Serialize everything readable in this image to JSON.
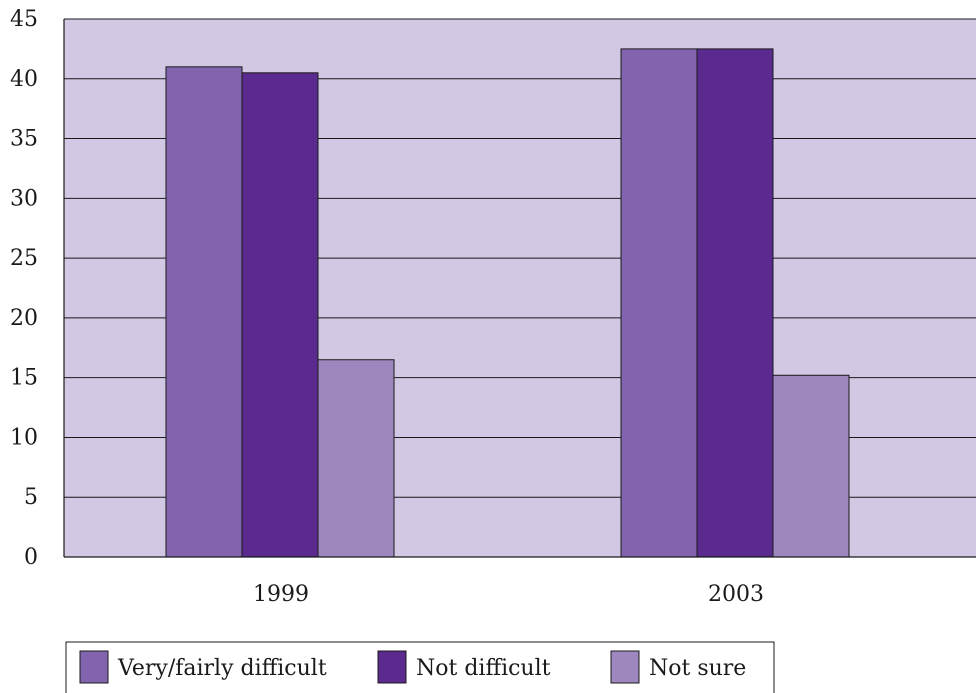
{
  "chart_data": {
    "type": "bar",
    "categories": [
      "1999",
      "2003"
    ],
    "series": [
      {
        "name": "Very/fairly difficult",
        "values": [
          41,
          42.5
        ],
        "color": "#8264ae"
      },
      {
        "name": "Not difficult",
        "values": [
          40.5,
          42.5
        ],
        "color": "#5b2a8e"
      },
      {
        "name": "Not sure",
        "values": [
          16.5,
          15.2
        ],
        "color": "#9e86bf"
      }
    ],
    "ylim": [
      0,
      45
    ],
    "yticks": [
      "0",
      "5",
      "10",
      "15",
      "20",
      "25",
      "30",
      "35",
      "40",
      "45"
    ],
    "grid": true,
    "plot_background": "#d3c8e4",
    "legend_position": "bottom"
  }
}
